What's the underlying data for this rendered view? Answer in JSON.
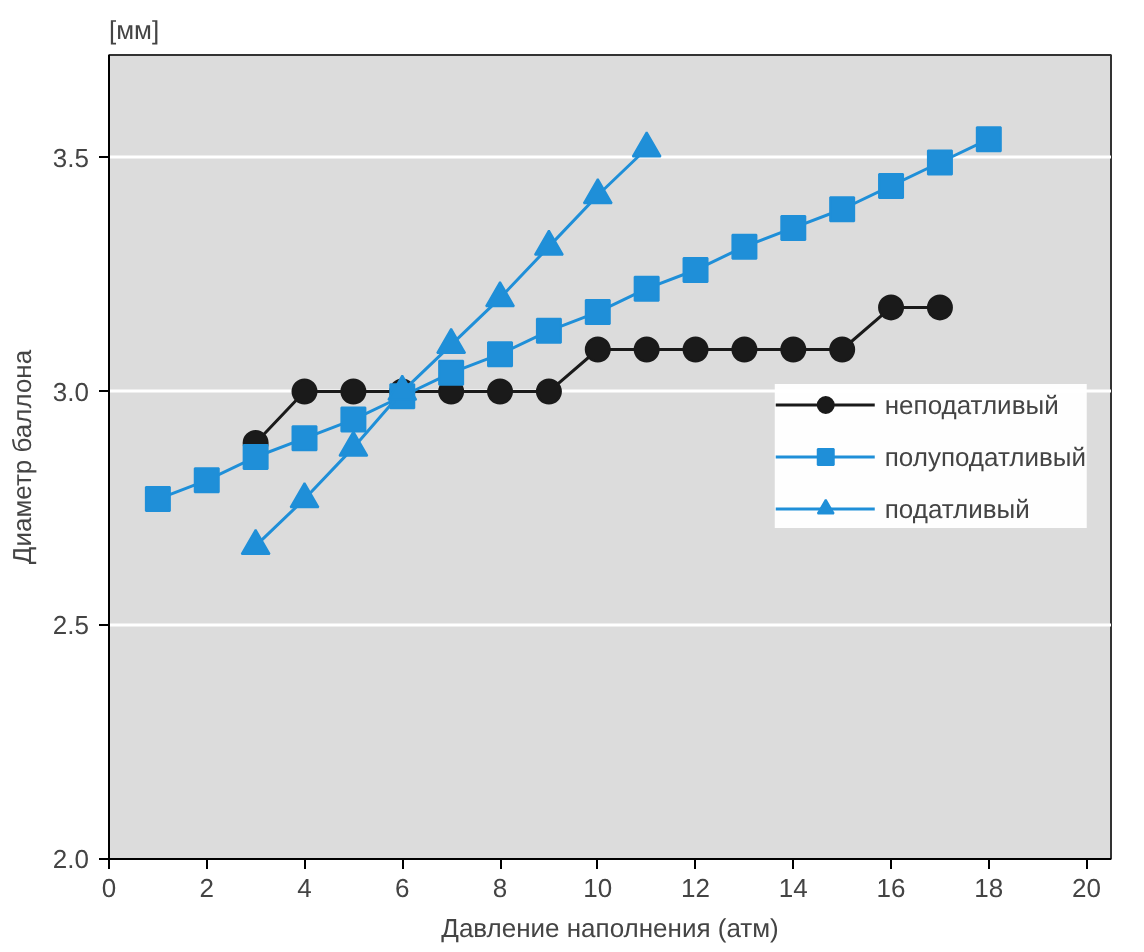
{
  "chart_data": {
    "type": "line",
    "xlabel": "Давление наполнения (атм)",
    "ylabel": "Диаметр баллона",
    "annotations": [
      "[мм]"
    ],
    "xlim": [
      0,
      20.5
    ],
    "ylim": [
      2.0,
      3.72
    ],
    "xticks": [
      0,
      2,
      4,
      6,
      8,
      10,
      12,
      14,
      16,
      18,
      20
    ],
    "yticks": [
      {
        "value": 2.0,
        "label": "2.0"
      },
      {
        "value": 2.5,
        "label": "2.5"
      },
      {
        "value": 3.0,
        "label": "3.0"
      },
      {
        "value": 3.5,
        "label": "3.5"
      }
    ],
    "grid": "y",
    "legend": "right",
    "series": [
      {
        "name": "неподатливый",
        "color": "#1a1a1a",
        "marker": "circle",
        "x": [
          3,
          4,
          5,
          6,
          7,
          8,
          9,
          10,
          11,
          12,
          13,
          14,
          15,
          16,
          17
        ],
        "values": [
          2.89,
          3.0,
          3.0,
          3.0,
          3.0,
          3.0,
          3.0,
          3.09,
          3.09,
          3.09,
          3.09,
          3.09,
          3.09,
          3.18,
          3.18
        ]
      },
      {
        "name": "полуподатливый",
        "color": "#1f8fd8",
        "marker": "square",
        "x": [
          1,
          2,
          3,
          4,
          5,
          6,
          7,
          8,
          9,
          10,
          11,
          12,
          13,
          14,
          15,
          16,
          17,
          18
        ],
        "values": [
          2.77,
          2.81,
          2.86,
          2.9,
          2.94,
          2.99,
          3.04,
          3.08,
          3.13,
          3.17,
          3.22,
          3.26,
          3.31,
          3.35,
          3.39,
          3.44,
          3.49,
          3.54
        ]
      },
      {
        "name": "податливый",
        "color": "#1f8fd8",
        "marker": "triangle",
        "x": [
          3,
          4,
          5,
          6,
          7,
          8,
          9,
          10,
          11
        ],
        "values": [
          2.67,
          2.77,
          2.88,
          3.0,
          3.1,
          3.2,
          3.31,
          3.42,
          3.52
        ]
      }
    ]
  }
}
